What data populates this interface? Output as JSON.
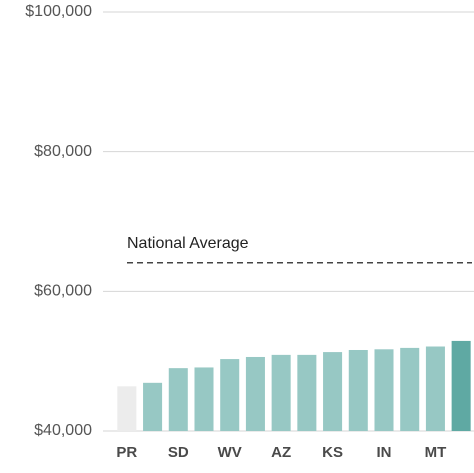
{
  "chart_data": {
    "type": "bar",
    "categories": [
      "PR",
      null,
      "SD",
      null,
      "WV",
      null,
      "AZ",
      null,
      "KS",
      null,
      "IN",
      null,
      "MT",
      null
    ],
    "values": [
      46400,
      46900,
      49000,
      49100,
      50300,
      50600,
      50900,
      50900,
      51300,
      51600,
      51700,
      51900,
      52100,
      52900
    ],
    "colors": [
      "#ececec",
      "#97c8c4",
      "#97c8c4",
      "#97c8c4",
      "#97c8c4",
      "#97c8c4",
      "#97c8c4",
      "#97c8c4",
      "#97c8c4",
      "#97c8c4",
      "#97c8c4",
      "#97c8c4",
      "#97c8c4",
      "#5fa9a3"
    ],
    "ylim": [
      40000,
      100000
    ],
    "yticks": [
      {
        "value": 40000,
        "label": "$40,000"
      },
      {
        "value": 60000,
        "label": "$60,000"
      },
      {
        "value": 80000,
        "label": "$80,000"
      },
      {
        "value": 100000,
        "label": "$100,000"
      }
    ],
    "grid": true,
    "reference_line": {
      "label": "National Average",
      "value": 64100,
      "color": "#444444"
    }
  }
}
